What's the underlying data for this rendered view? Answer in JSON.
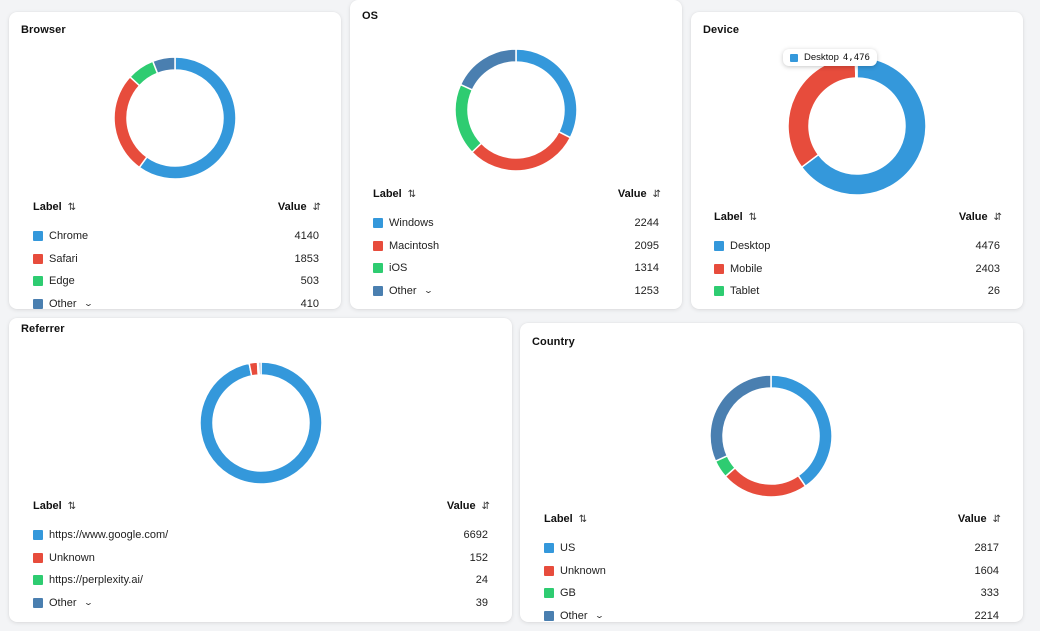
{
  "colors": {
    "blue": "#3498db",
    "red": "#e74c3c",
    "green": "#2ecc71",
    "steel": "#4a7fb0"
  },
  "table_header": {
    "label": "Label",
    "value": "Value",
    "label_sort_icon": "⇅",
    "value_sort_icon": "⇵"
  },
  "cards": [
    {
      "id": "browser",
      "title": "Browser",
      "rows": [
        {
          "label": "Chrome",
          "value": 4140,
          "color": "#3498db"
        },
        {
          "label": "Safari",
          "value": 1853,
          "color": "#e74c3c"
        },
        {
          "label": "Edge",
          "value": 503,
          "color": "#2ecc71"
        },
        {
          "label": "Other",
          "value": 410,
          "color": "#4a7fb0",
          "expandable": true
        }
      ]
    },
    {
      "id": "os",
      "title": "OS",
      "rows": [
        {
          "label": "Windows",
          "value": 2244,
          "color": "#3498db"
        },
        {
          "label": "Macintosh",
          "value": 2095,
          "color": "#e74c3c"
        },
        {
          "label": "iOS",
          "value": 1314,
          "color": "#2ecc71"
        },
        {
          "label": "Other",
          "value": 1253,
          "color": "#4a7fb0",
          "expandable": true
        }
      ]
    },
    {
      "id": "device",
      "title": "Device",
      "tooltip": {
        "label": "Desktop",
        "value": "4,476",
        "color": "#3498db"
      },
      "rows": [
        {
          "label": "Desktop",
          "value": 4476,
          "color": "#3498db"
        },
        {
          "label": "Mobile",
          "value": 2403,
          "color": "#e74c3c"
        },
        {
          "label": "Tablet",
          "value": 26,
          "color": "#2ecc71"
        }
      ]
    },
    {
      "id": "referrer",
      "title": "Referrer",
      "rows": [
        {
          "label": "https://www.google.com/",
          "value": 6692,
          "color": "#3498db"
        },
        {
          "label": "Unknown",
          "value": 152,
          "color": "#e74c3c"
        },
        {
          "label": "https://perplexity.ai/",
          "value": 24,
          "color": "#2ecc71"
        },
        {
          "label": "Other",
          "value": 39,
          "color": "#4a7fb0",
          "expandable": true
        }
      ]
    },
    {
      "id": "country",
      "title": "Country",
      "rows": [
        {
          "label": "US",
          "value": 2817,
          "color": "#3498db"
        },
        {
          "label": "Unknown",
          "value": 1604,
          "color": "#e74c3c"
        },
        {
          "label": "GB",
          "value": 333,
          "color": "#2ecc71"
        },
        {
          "label": "Other",
          "value": 2214,
          "color": "#4a7fb0",
          "expandable": true
        }
      ]
    }
  ]
}
